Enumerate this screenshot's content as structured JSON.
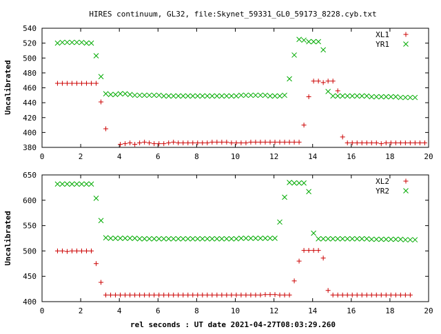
{
  "title": "HIRES continuum, GL32, file:Skynet_59331_GL0_59173_8228.cyb.txt",
  "xlabel": "rel seconds : UT date 2021-04-27T08:03:29.260",
  "colors": {
    "x_series": "#cc0000",
    "y_series": "#00aa00",
    "axes": "#000000"
  },
  "chart_data": [
    {
      "type": "scatter",
      "ylabel": "Uncalibrated",
      "xlim": [
        0,
        20
      ],
      "ylim": [
        380,
        540
      ],
      "xticks": [
        0,
        2,
        4,
        6,
        8,
        10,
        12,
        14,
        16,
        18,
        20
      ],
      "yticks": [
        380,
        400,
        420,
        440,
        460,
        480,
        500,
        520,
        540
      ],
      "grid": false,
      "legend_position": "top-right",
      "series": [
        {
          "name": "XL1",
          "marker": "plus",
          "color": "#cc0000",
          "x": [
            0.8,
            1.05,
            1.3,
            1.55,
            1.8,
            2.05,
            2.3,
            2.55,
            2.8,
            3.05,
            3.3,
            4.05,
            4.3,
            4.55,
            4.8,
            5.05,
            5.3,
            5.55,
            5.8,
            6.05,
            6.3,
            6.55,
            6.8,
            7.05,
            7.3,
            7.55,
            7.8,
            8.05,
            8.3,
            8.55,
            8.8,
            9.05,
            9.3,
            9.55,
            9.8,
            10.05,
            10.3,
            10.55,
            10.8,
            11.05,
            11.3,
            11.55,
            11.8,
            12.05,
            12.3,
            12.55,
            12.8,
            13.05,
            13.3,
            13.55,
            13.8,
            14.05,
            14.3,
            14.55,
            14.8,
            15.05,
            15.3,
            15.55,
            15.8,
            16.05,
            16.3,
            16.55,
            16.8,
            17.05,
            17.3,
            17.55,
            17.8,
            18.05,
            18.3,
            18.55,
            18.8,
            19.05,
            19.3,
            19.55,
            19.8
          ],
          "y": [
            466,
            466,
            466,
            466,
            466,
            466,
            466,
            466,
            466,
            441,
            405,
            384,
            385,
            386,
            384,
            386,
            387,
            386,
            385,
            385,
            385,
            386,
            387,
            386,
            386,
            386,
            386,
            386,
            386,
            386,
            387,
            387,
            387,
            387,
            386,
            386,
            386,
            386,
            387,
            387,
            387,
            387,
            387,
            387,
            387,
            387,
            387,
            387,
            387,
            410,
            448,
            469,
            469,
            467,
            469,
            469,
            456,
            394,
            386,
            386,
            386,
            386,
            386,
            386,
            386,
            385,
            386,
            386,
            386,
            386,
            386,
            386,
            386,
            386,
            386
          ],
          "_note_unused": ""
        },
        {
          "name": "YR1",
          "marker": "cross",
          "color": "#00aa00",
          "x": [
            0.8,
            1.05,
            1.3,
            1.55,
            1.8,
            2.05,
            2.3,
            2.55,
            2.8,
            3.05,
            3.3,
            3.55,
            3.8,
            4.05,
            4.3,
            4.55,
            4.8,
            5.05,
            5.3,
            5.55,
            5.8,
            6.05,
            6.3,
            6.55,
            6.8,
            7.05,
            7.3,
            7.55,
            7.8,
            8.05,
            8.3,
            8.55,
            8.8,
            9.05,
            9.3,
            9.55,
            9.8,
            10.05,
            10.3,
            10.55,
            10.8,
            11.05,
            11.3,
            11.55,
            11.8,
            12.05,
            12.3,
            12.55,
            12.8,
            13.05,
            13.3,
            13.55,
            13.8,
            14.05,
            14.3,
            14.55,
            14.8,
            15.05,
            15.3,
            15.55,
            15.8,
            16.05,
            16.3,
            16.55,
            16.8,
            17.05,
            17.3,
            17.55,
            17.8,
            18.05,
            18.3,
            18.55,
            18.8,
            19.05,
            19.3
          ],
          "y": [
            520,
            521,
            521,
            521,
            521,
            521,
            520,
            520,
            503,
            475,
            452,
            451,
            451,
            452,
            452,
            451,
            450,
            450,
            450,
            450,
            450,
            450,
            449,
            449,
            449,
            449,
            449,
            449,
            449,
            449,
            449,
            449,
            449,
            449,
            449,
            449,
            449,
            449,
            450,
            450,
            450,
            450,
            450,
            450,
            449,
            449,
            449,
            450,
            472,
            504,
            525,
            524,
            522,
            522,
            522,
            511,
            455,
            449,
            449,
            449,
            449,
            449,
            449,
            449,
            449,
            448,
            448,
            448,
            448,
            448,
            448,
            447,
            447,
            447,
            447
          ]
        }
      ]
    },
    {
      "type": "scatter",
      "ylabel": "Uncalibrated",
      "xlim": [
        0,
        20
      ],
      "ylim": [
        400,
        650
      ],
      "xticks": [
        0,
        2,
        4,
        6,
        8,
        10,
        12,
        14,
        16,
        18,
        20
      ],
      "yticks": [
        400,
        450,
        500,
        550,
        600,
        650
      ],
      "grid": false,
      "legend_position": "top-right",
      "series": [
        {
          "name": "XL2",
          "marker": "plus",
          "color": "#cc0000",
          "x": [
            0.8,
            1.05,
            1.3,
            1.55,
            1.8,
            2.05,
            2.3,
            2.55,
            2.8,
            3.05,
            3.3,
            3.55,
            3.8,
            4.05,
            4.3,
            4.55,
            4.8,
            5.05,
            5.3,
            5.55,
            5.8,
            6.05,
            6.3,
            6.55,
            6.8,
            7.05,
            7.3,
            7.55,
            7.8,
            8.05,
            8.3,
            8.55,
            8.8,
            9.05,
            9.3,
            9.55,
            9.8,
            10.05,
            10.3,
            10.55,
            10.8,
            11.05,
            11.3,
            11.55,
            11.8,
            12.05,
            12.3,
            12.55,
            12.8,
            13.05,
            13.3,
            13.55,
            13.8,
            14.05,
            14.3,
            14.55,
            14.8,
            15.05,
            15.3,
            15.55,
            15.8,
            16.05,
            16.3,
            16.55,
            16.8,
            17.05,
            17.3,
            17.55,
            17.8,
            18.05,
            18.3,
            18.55,
            18.8,
            19.05
          ],
          "y": [
            500,
            500,
            499,
            500,
            500,
            500,
            500,
            500,
            475,
            438,
            413,
            413,
            413,
            413,
            413,
            413,
            413,
            413,
            413,
            413,
            413,
            413,
            413,
            413,
            413,
            413,
            413,
            413,
            413,
            413,
            413,
            413,
            413,
            413,
            413,
            413,
            413,
            413,
            413,
            413,
            413,
            413,
            413,
            414,
            414,
            414,
            413,
            413,
            413,
            441,
            480,
            501,
            501,
            501,
            501,
            486,
            422,
            413,
            413,
            413,
            413,
            413,
            413,
            413,
            413,
            413,
            413,
            413,
            413,
            413,
            413,
            413,
            413,
            413
          ]
        },
        {
          "name": "YR2",
          "marker": "cross",
          "color": "#00aa00",
          "x": [
            0.8,
            1.05,
            1.3,
            1.55,
            1.8,
            2.05,
            2.3,
            2.55,
            2.8,
            3.05,
            3.3,
            3.55,
            3.8,
            4.05,
            4.3,
            4.55,
            4.8,
            5.05,
            5.3,
            5.55,
            5.8,
            6.05,
            6.3,
            6.55,
            6.8,
            7.05,
            7.3,
            7.55,
            7.8,
            8.05,
            8.3,
            8.55,
            8.8,
            9.05,
            9.3,
            9.55,
            9.8,
            10.05,
            10.3,
            10.55,
            10.8,
            11.05,
            11.3,
            11.55,
            11.8,
            12.05,
            12.3,
            12.55,
            12.8,
            13.05,
            13.3,
            13.55,
            13.8,
            14.05,
            14.3,
            14.55,
            14.8,
            15.05,
            15.3,
            15.55,
            15.8,
            16.05,
            16.3,
            16.55,
            16.8,
            17.05,
            17.3,
            17.55,
            17.8,
            18.05,
            18.3,
            18.55,
            18.8,
            19.05,
            19.3
          ],
          "y": [
            632,
            632,
            632,
            632,
            632,
            632,
            632,
            632,
            604,
            560,
            526,
            525,
            525,
            525,
            525,
            525,
            525,
            524,
            524,
            524,
            524,
            524,
            524,
            524,
            524,
            524,
            524,
            524,
            524,
            524,
            524,
            524,
            524,
            524,
            524,
            524,
            524,
            524,
            525,
            525,
            525,
            525,
            525,
            525,
            525,
            525,
            557,
            606,
            635,
            634,
            634,
            634,
            617,
            535,
            524,
            524,
            524,
            524,
            524,
            524,
            524,
            524,
            524,
            524,
            524,
            523,
            523,
            523,
            523,
            523,
            523,
            523,
            522,
            522,
            522
          ]
        }
      ]
    }
  ]
}
